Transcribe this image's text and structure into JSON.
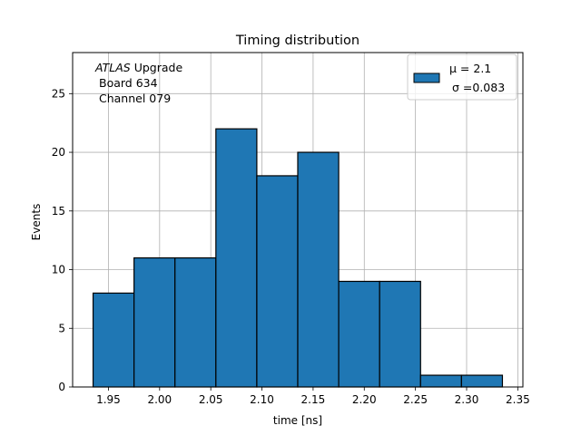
{
  "chart_data": {
    "type": "bar",
    "title": "Timing distribution",
    "xlabel": "time [ns]",
    "ylabel": "Events",
    "bin_edges": [
      1.935,
      1.975,
      2.015,
      2.055,
      2.095,
      2.135,
      2.175,
      2.215,
      2.255,
      2.295,
      2.335
    ],
    "values": [
      8,
      11,
      11,
      22,
      18,
      20,
      9,
      9,
      1,
      1
    ],
    "xlim": [
      1.915,
      2.355
    ],
    "ylim": [
      0,
      28.5
    ],
    "xticks": [
      "1.95",
      "2.00",
      "2.05",
      "2.10",
      "2.15",
      "2.20",
      "2.25",
      "2.30",
      "2.35"
    ],
    "xtick_values": [
      1.95,
      2.0,
      2.05,
      2.1,
      2.15,
      2.2,
      2.25,
      2.3,
      2.35
    ],
    "yticks": [
      "0",
      "5",
      "10",
      "15",
      "20",
      "25"
    ],
    "ytick_values": [
      0,
      5,
      10,
      15,
      20,
      25
    ],
    "grid": true,
    "bar_color": "#1f77b4",
    "edge_color": "#000000",
    "legend": {
      "position": "top-right",
      "mu_label": "μ = 2.1",
      "sigma_label": "σ =0.083"
    },
    "annotation": {
      "line1_italic": "ATLAS",
      "line1_rest": " Upgrade",
      "line2": "Board 634",
      "line3": "Channel 079"
    }
  }
}
